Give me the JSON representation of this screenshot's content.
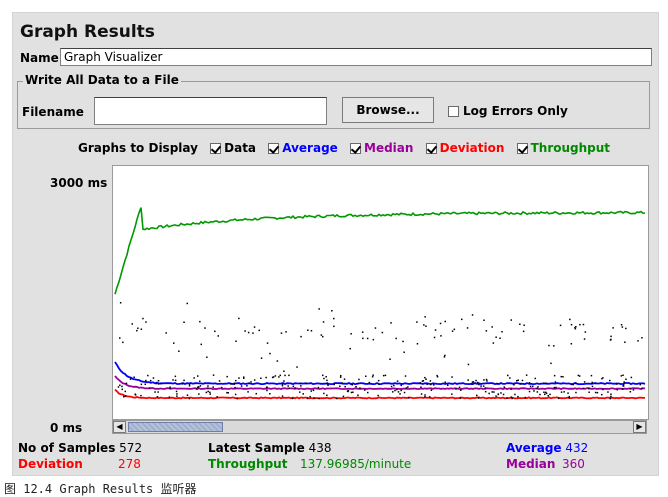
{
  "window": {
    "title": "Graph Results"
  },
  "name_field": {
    "label": "Name:",
    "value": "Graph Visualizer"
  },
  "file_section": {
    "title": "Write All Data to a File",
    "filename_label": "Filename",
    "filename_value": "",
    "browse_label": "Browse...",
    "log_errors_label": "Log Errors Only",
    "log_errors_checked": false
  },
  "graphs_to_display": {
    "label": "Graphs to Display",
    "options": [
      {
        "label": "Data",
        "checked": true,
        "color": "#000000"
      },
      {
        "label": "Average",
        "checked": true,
        "color": "#0000ff"
      },
      {
        "label": "Median",
        "checked": true,
        "color": "#990099"
      },
      {
        "label": "Deviation",
        "checked": true,
        "color": "#ff0000"
      },
      {
        "label": "Throughput",
        "checked": true,
        "color": "#008800"
      }
    ]
  },
  "chart_data": {
    "type": "line",
    "y_axis": {
      "max_label": "3000 ms",
      "min_label": "0 ms",
      "ylim": [
        0,
        3000
      ]
    },
    "series": [
      {
        "name": "Throughput",
        "color": "#009900"
      },
      {
        "name": "Average",
        "color": "#0000ff"
      },
      {
        "name": "Median",
        "color": "#990099"
      },
      {
        "name": "Deviation",
        "color": "#ff0000"
      },
      {
        "name": "Data",
        "color": "#000000"
      }
    ],
    "grid": false
  },
  "stats": {
    "no_of_samples_label": "No of Samples",
    "no_of_samples_value": "572",
    "latest_sample_label": "Latest Sample",
    "latest_sample_value": "438",
    "average_label": "Average",
    "average_value": "432",
    "deviation_label": "Deviation",
    "deviation_value": "278",
    "throughput_label": "Throughput",
    "throughput_value": "137.96985/minute",
    "median_label": "Median",
    "median_value": "360"
  },
  "colors": {
    "average": "#0000ff",
    "deviation": "#ff0000",
    "throughput": "#008800",
    "median": "#990099"
  },
  "caption": "图 12.4 Graph Results 监听器"
}
